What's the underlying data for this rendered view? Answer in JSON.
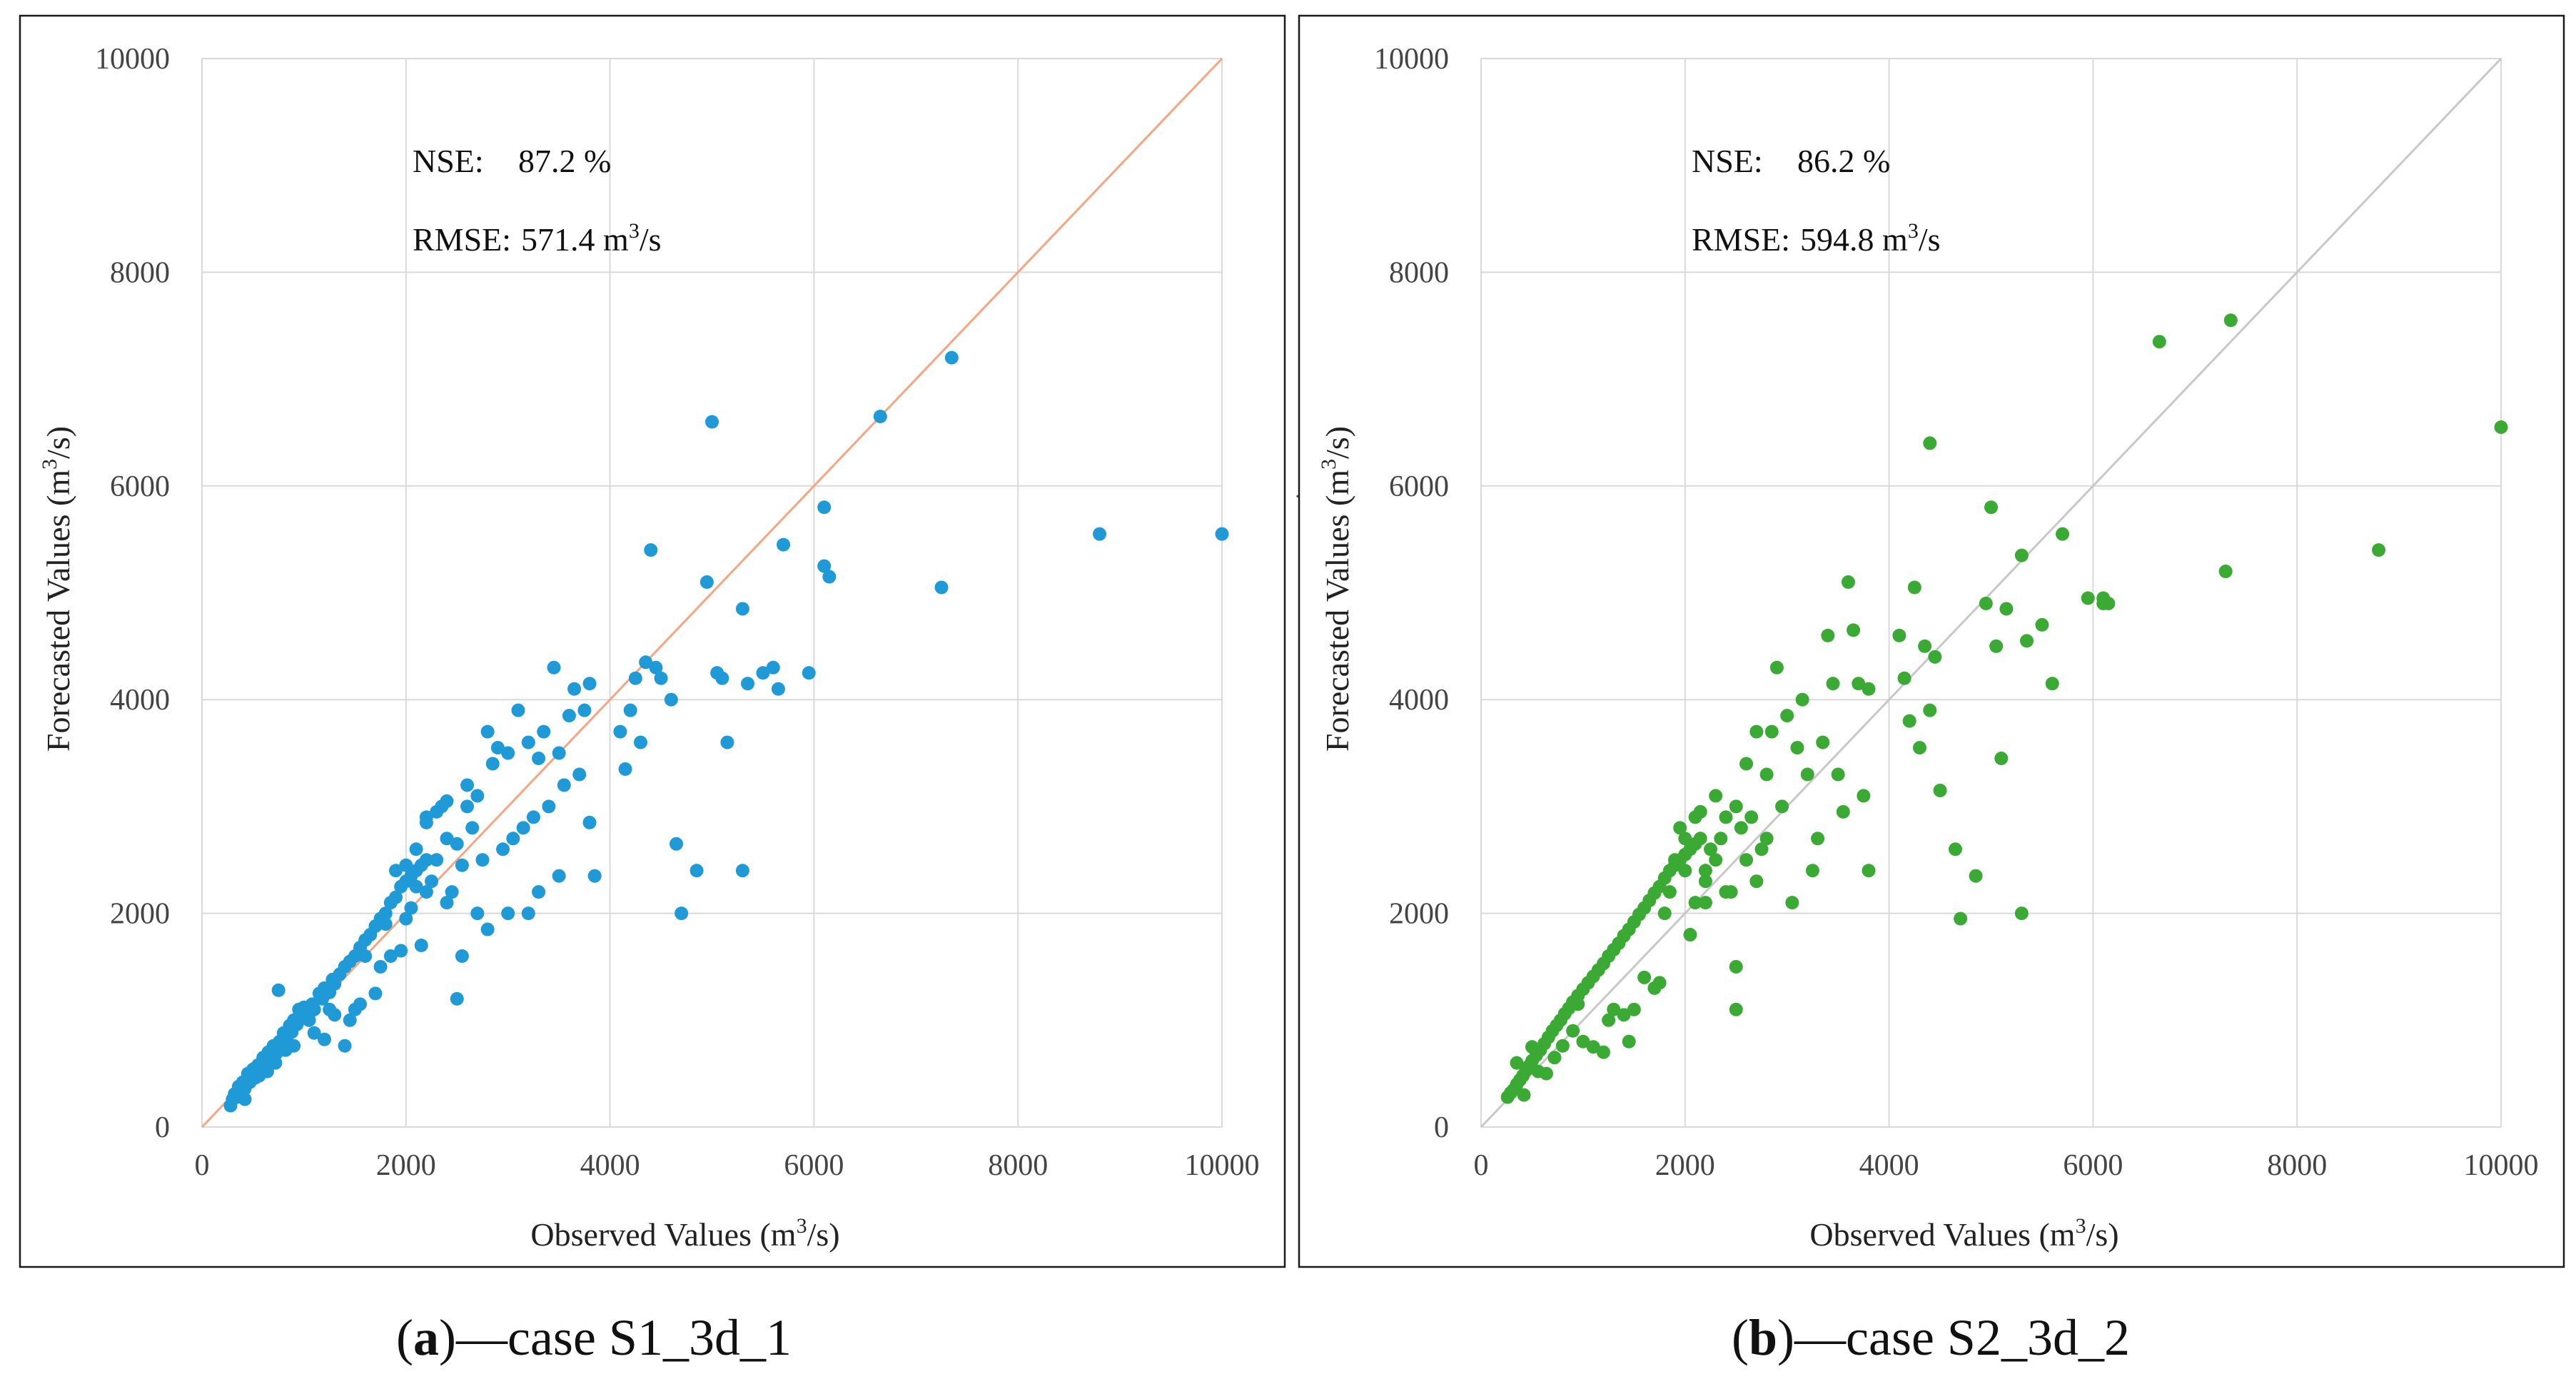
{
  "chart_data": [
    {
      "type": "scatter",
      "panel_label": "a",
      "caption": "—case S1_3d_1",
      "xlabel": "Observed Values (m",
      "ylabel": "Forecasted Values (m",
      "unit_suffix": "/s)",
      "unit_sup": "3",
      "xlim": [
        0,
        10000
      ],
      "ylim": [
        0,
        10000
      ],
      "xticks": [
        "0",
        "2000",
        "4000",
        "6000",
        "8000",
        "10000"
      ],
      "yticks": [
        "0",
        "2000",
        "4000",
        "6000",
        "8000",
        "10000"
      ],
      "nse_label": "NSE:",
      "nse_value": "87.2 %",
      "rmse_label": "RMSE:",
      "rmse_value": "571.4 m",
      "rmse_sup": "3",
      "rmse_suffix": "/s",
      "point_color": "#1f9ad6",
      "line_color": "#f4a582",
      "points": [
        [
          280,
          200
        ],
        [
          300,
          260
        ],
        [
          320,
          310
        ],
        [
          340,
          280
        ],
        [
          360,
          380
        ],
        [
          380,
          330
        ],
        [
          400,
          420
        ],
        [
          420,
          360
        ],
        [
          450,
          500
        ],
        [
          470,
          420
        ],
        [
          500,
          540
        ],
        [
          520,
          460
        ],
        [
          550,
          580
        ],
        [
          580,
          520
        ],
        [
          600,
          650
        ],
        [
          620,
          590
        ],
        [
          650,
          700
        ],
        [
          680,
          640
        ],
        [
          700,
          760
        ],
        [
          730,
          690
        ],
        [
          760,
          800
        ],
        [
          780,
          740
        ],
        [
          800,
          880
        ],
        [
          830,
          820
        ],
        [
          860,
          950
        ],
        [
          880,
          890
        ],
        [
          900,
          1000
        ],
        [
          930,
          960
        ],
        [
          960,
          1080
        ],
        [
          990,
          1020
        ],
        [
          1000,
          1120
        ],
        [
          1050,
          1060
        ],
        [
          1080,
          1150
        ],
        [
          1100,
          1100
        ],
        [
          1150,
          1250
        ],
        [
          1180,
          1200
        ],
        [
          1200,
          1300
        ],
        [
          1250,
          1260
        ],
        [
          1280,
          1380
        ],
        [
          1300,
          1340
        ],
        [
          1350,
          1430
        ],
        [
          1400,
          1500
        ],
        [
          1450,
          1550
        ],
        [
          1500,
          1600
        ],
        [
          1550,
          1680
        ],
        [
          1600,
          1750
        ],
        [
          1650,
          1800
        ],
        [
          1700,
          1880
        ],
        [
          1750,
          1950
        ],
        [
          1800,
          2000
        ],
        [
          1850,
          2100
        ],
        [
          1900,
          2150
        ],
        [
          1950,
          2250
        ],
        [
          2000,
          2300
        ],
        [
          2050,
          2350
        ],
        [
          2100,
          2400
        ],
        [
          2150,
          2450
        ],
        [
          2200,
          2500
        ],
        [
          350,
          320
        ],
        [
          420,
          260
        ],
        [
          480,
          500
        ],
        [
          560,
          480
        ],
        [
          640,
          520
        ],
        [
          720,
          600
        ],
        [
          750,
          1280
        ],
        [
          820,
          720
        ],
        [
          900,
          760
        ],
        [
          950,
          1100
        ],
        [
          1000,
          1020
        ],
        [
          1050,
          1000
        ],
        [
          1100,
          880
        ],
        [
          1200,
          820
        ],
        [
          1250,
          1100
        ],
        [
          1300,
          1050
        ],
        [
          1400,
          760
        ],
        [
          1450,
          1000
        ],
        [
          1500,
          1100
        ],
        [
          1550,
          1150
        ],
        [
          1600,
          1600
        ],
        [
          1700,
          1250
        ],
        [
          1750,
          1500
        ],
        [
          1800,
          1900
        ],
        [
          1850,
          1600
        ],
        [
          1900,
          2400
        ],
        [
          1950,
          1650
        ],
        [
          2000,
          1950
        ],
        [
          2050,
          2050
        ],
        [
          2100,
          2600
        ],
        [
          2150,
          1700
        ],
        [
          2200,
          2900
        ],
        [
          2250,
          2300
        ],
        [
          2300,
          2500
        ],
        [
          2350,
          3000
        ],
        [
          2400,
          2700
        ],
        [
          2450,
          2200
        ],
        [
          2500,
          2650
        ],
        [
          2500,
          1200
        ],
        [
          2550,
          2450
        ],
        [
          2600,
          3200
        ],
        [
          2650,
          2800
        ],
        [
          2700,
          3100
        ],
        [
          2750,
          2500
        ],
        [
          2800,
          3700
        ],
        [
          2850,
          3400
        ],
        [
          2900,
          3550
        ],
        [
          2950,
          2600
        ],
        [
          3000,
          3500
        ],
        [
          3050,
          2700
        ],
        [
          3100,
          3900
        ],
        [
          3150,
          2800
        ],
        [
          3200,
          3600
        ],
        [
          3250,
          2900
        ],
        [
          3300,
          3450
        ],
        [
          3350,
          3700
        ],
        [
          3400,
          3000
        ],
        [
          3450,
          4300
        ],
        [
          3500,
          3500
        ],
        [
          3550,
          3200
        ],
        [
          3600,
          3850
        ],
        [
          3650,
          4100
        ],
        [
          3700,
          3300
        ],
        [
          3750,
          3900
        ],
        [
          3800,
          4150
        ],
        [
          3800,
          2850
        ],
        [
          3850,
          2350
        ],
        [
          2200,
          2850
        ],
        [
          2300,
          2950
        ],
        [
          2400,
          3050
        ],
        [
          2600,
          3000
        ],
        [
          2800,
          1850
        ],
        [
          2700,
          2000
        ],
        [
          3000,
          2000
        ],
        [
          3200,
          2000
        ],
        [
          3300,
          2200
        ],
        [
          3500,
          2350
        ],
        [
          2000,
          2450
        ],
        [
          2100,
          2250
        ],
        [
          2200,
          2200
        ],
        [
          2400,
          2100
        ],
        [
          2550,
          1600
        ],
        [
          4100,
          3700
        ],
        [
          4150,
          3350
        ],
        [
          4200,
          3900
        ],
        [
          4250,
          4200
        ],
        [
          4300,
          3600
        ],
        [
          4350,
          4350
        ],
        [
          4400,
          5400
        ],
        [
          4450,
          4300
        ],
        [
          4500,
          4200
        ],
        [
          4600,
          4000
        ],
        [
          4650,
          2650
        ],
        [
          4700,
          2000
        ],
        [
          4850,
          2400
        ],
        [
          4950,
          5100
        ],
        [
          5000,
          6600
        ],
        [
          5050,
          4250
        ],
        [
          5100,
          4200
        ],
        [
          5150,
          3600
        ],
        [
          5300,
          2400
        ],
        [
          5300,
          4850
        ],
        [
          5350,
          4150
        ],
        [
          5500,
          4250
        ],
        [
          5600,
          4300
        ],
        [
          5650,
          4100
        ],
        [
          5700,
          5450
        ],
        [
          5950,
          4250
        ],
        [
          6100,
          5800
        ],
        [
          6100,
          5250
        ],
        [
          6150,
          5150
        ],
        [
          6650,
          6650
        ],
        [
          7250,
          5050
        ],
        [
          7350,
          7200
        ],
        [
          8800,
          5550
        ],
        [
          10000,
          5550
        ]
      ]
    },
    {
      "type": "scatter",
      "panel_label": "b",
      "caption": "—case S2_3d_2",
      "xlabel": "Observed Values (m",
      "ylabel": "Forecasted Values (m",
      "unit_suffix": "/s)",
      "unit_sup": "3",
      "xlim": [
        0,
        10000
      ],
      "ylim": [
        0,
        10000
      ],
      "xticks": [
        "0",
        "2000",
        "4000",
        "6000",
        "8000",
        "10000"
      ],
      "yticks": [
        "0",
        "2000",
        "4000",
        "6000",
        "8000",
        "10000"
      ],
      "nse_label": "NSE:",
      "nse_value": "86.2 %",
      "rmse_label": "RMSE:",
      "rmse_value": "594.8 m",
      "rmse_sup": "3",
      "rmse_suffix": "/s",
      "point_color": "#3aaa35",
      "line_color": "#c8c8c8",
      "points": [
        [
          260,
          280
        ],
        [
          290,
          320
        ],
        [
          320,
          350
        ],
        [
          350,
          400
        ],
        [
          380,
          440
        ],
        [
          410,
          480
        ],
        [
          440,
          530
        ],
        [
          470,
          570
        ],
        [
          500,
          620
        ],
        [
          540,
          670
        ],
        [
          580,
          720
        ],
        [
          620,
          780
        ],
        [
          660,
          840
        ],
        [
          700,
          900
        ],
        [
          740,
          950
        ],
        [
          780,
          1000
        ],
        [
          820,
          1060
        ],
        [
          860,
          1110
        ],
        [
          900,
          1170
        ],
        [
          950,
          1230
        ],
        [
          1000,
          1290
        ],
        [
          1050,
          1350
        ],
        [
          1100,
          1410
        ],
        [
          1150,
          1470
        ],
        [
          1200,
          1530
        ],
        [
          1250,
          1600
        ],
        [
          1300,
          1660
        ],
        [
          1350,
          1720
        ],
        [
          1400,
          1790
        ],
        [
          1450,
          1850
        ],
        [
          1500,
          1920
        ],
        [
          1550,
          1990
        ],
        [
          1600,
          2050
        ],
        [
          1650,
          2120
        ],
        [
          1700,
          2190
        ],
        [
          1750,
          2250
        ],
        [
          1800,
          2330
        ],
        [
          1850,
          2400
        ],
        [
          1900,
          2450
        ],
        [
          1950,
          2500
        ],
        [
          2000,
          2550
        ],
        [
          2050,
          2600
        ],
        [
          2100,
          2650
        ],
        [
          2150,
          2700
        ],
        [
          350,
          600
        ],
        [
          420,
          300
        ],
        [
          500,
          750
        ],
        [
          560,
          520
        ],
        [
          640,
          500
        ],
        [
          720,
          650
        ],
        [
          800,
          760
        ],
        [
          900,
          900
        ],
        [
          950,
          1150
        ],
        [
          1000,
          800
        ],
        [
          1100,
          750
        ],
        [
          1200,
          700
        ],
        [
          1250,
          1000
        ],
        [
          1300,
          1100
        ],
        [
          1400,
          1050
        ],
        [
          1450,
          800
        ],
        [
          1500,
          1100
        ],
        [
          1600,
          1400
        ],
        [
          1700,
          1300
        ],
        [
          1750,
          1350
        ],
        [
          1800,
          2000
        ],
        [
          1850,
          2200
        ],
        [
          1900,
          2500
        ],
        [
          1950,
          2800
        ],
        [
          2000,
          2400
        ],
        [
          2050,
          1800
        ],
        [
          2100,
          2100
        ],
        [
          2150,
          2950
        ],
        [
          2200,
          2400
        ],
        [
          2250,
          2600
        ],
        [
          2300,
          3100
        ],
        [
          2350,
          2700
        ],
        [
          2400,
          2900
        ],
        [
          2450,
          2200
        ],
        [
          2500,
          3000
        ],
        [
          2500,
          1100
        ],
        [
          2500,
          1500
        ],
        [
          2550,
          2800
        ],
        [
          2600,
          3400
        ],
        [
          2650,
          2900
        ],
        [
          2700,
          3700
        ],
        [
          2750,
          2600
        ],
        [
          2800,
          3300
        ],
        [
          2850,
          3700
        ],
        [
          2900,
          4300
        ],
        [
          2950,
          3000
        ],
        [
          3000,
          3850
        ],
        [
          3050,
          2100
        ],
        [
          3100,
          3550
        ],
        [
          3150,
          4000
        ],
        [
          3200,
          3300
        ],
        [
          3250,
          2400
        ],
        [
          3300,
          2700
        ],
        [
          3350,
          3600
        ],
        [
          3400,
          4600
        ],
        [
          3450,
          4150
        ],
        [
          3500,
          3300
        ],
        [
          3550,
          2950
        ],
        [
          3600,
          5100
        ],
        [
          3650,
          4650
        ],
        [
          3700,
          4150
        ],
        [
          3750,
          3100
        ],
        [
          3800,
          2400
        ],
        [
          3800,
          4100
        ],
        [
          2200,
          2300
        ],
        [
          2300,
          2500
        ],
        [
          2400,
          2200
        ],
        [
          2600,
          2500
        ],
        [
          2700,
          2300
        ],
        [
          2800,
          2700
        ],
        [
          2000,
          2700
        ],
        [
          2100,
          2900
        ],
        [
          2200,
          2100
        ],
        [
          4100,
          4600
        ],
        [
          4150,
          4200
        ],
        [
          4200,
          3800
        ],
        [
          4250,
          5050
        ],
        [
          4300,
          3550
        ],
        [
          4350,
          4500
        ],
        [
          4400,
          3900
        ],
        [
          4400,
          6400
        ],
        [
          4450,
          4400
        ],
        [
          4500,
          3150
        ],
        [
          4650,
          2600
        ],
        [
          4700,
          1950
        ],
        [
          4850,
          2350
        ],
        [
          4950,
          4900
        ],
        [
          5000,
          5800
        ],
        [
          5050,
          4500
        ],
        [
          5100,
          3450
        ],
        [
          5150,
          4850
        ],
        [
          5300,
          5350
        ],
        [
          5300,
          2000
        ],
        [
          5350,
          4550
        ],
        [
          5500,
          4700
        ],
        [
          5600,
          4150
        ],
        [
          5700,
          5550
        ],
        [
          5950,
          4950
        ],
        [
          6100,
          4950
        ],
        [
          6100,
          4900
        ],
        [
          6150,
          4900
        ],
        [
          6650,
          7350
        ],
        [
          7300,
          5200
        ],
        [
          7350,
          7550
        ],
        [
          8800,
          5400
        ],
        [
          10000,
          6550
        ]
      ]
    }
  ],
  "stray_mark": "·"
}
